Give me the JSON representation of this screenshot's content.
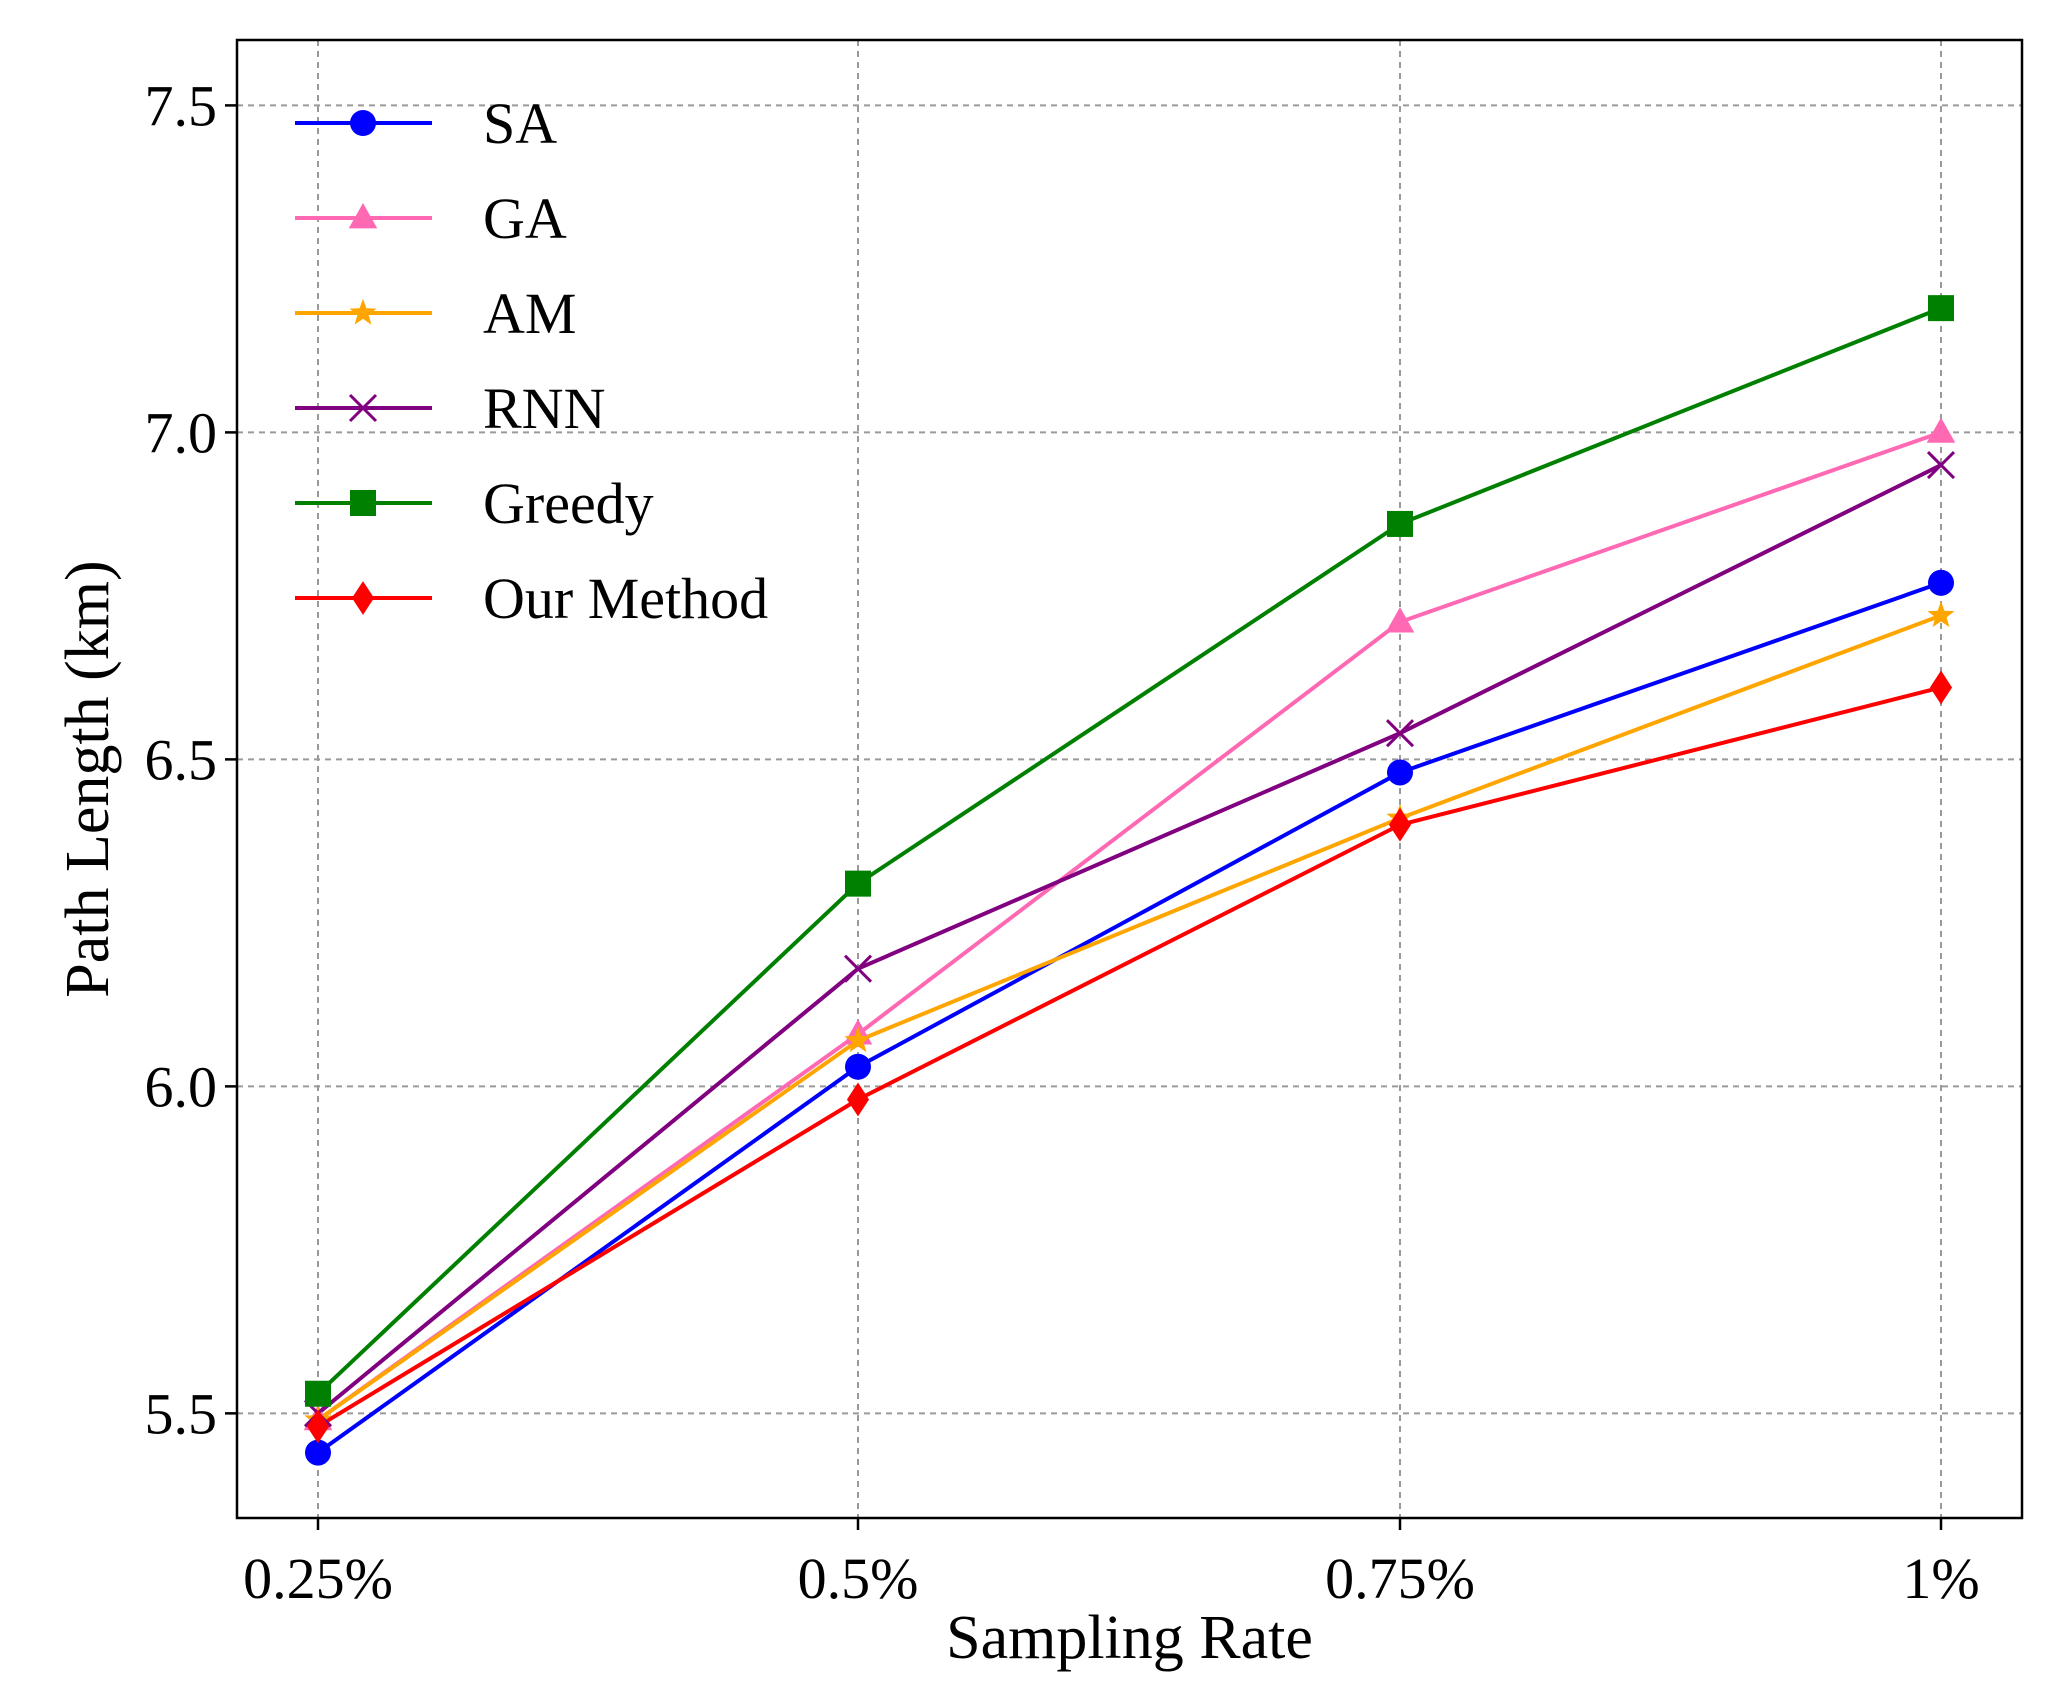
{
  "chart_data": {
    "type": "line",
    "title": "",
    "xlabel": "Sampling Rate",
    "ylabel": "Path Length (km)",
    "categories": [
      "0.25%",
      "0.5%",
      "0.75%",
      "1%"
    ],
    "ylim": [
      5.34,
      7.6
    ],
    "yticks": [
      5.5,
      6.0,
      6.5,
      7.0,
      7.5
    ],
    "ytick_labels": [
      "5.5",
      "6.0",
      "6.5",
      "7.0",
      "7.5"
    ],
    "grid": true,
    "legend_position": "top-left",
    "series": [
      {
        "name": "SA",
        "color": "#0000ff",
        "marker": "circle",
        "values": [
          5.44,
          6.03,
          6.48,
          6.77
        ]
      },
      {
        "name": "GA",
        "color": "#ff69b4",
        "marker": "triangle",
        "values": [
          5.49,
          6.08,
          6.71,
          7.0
        ]
      },
      {
        "name": "AM",
        "color": "#ffa500",
        "marker": "star",
        "values": [
          5.49,
          6.07,
          6.41,
          6.72
        ]
      },
      {
        "name": "RNN",
        "color": "#800080",
        "marker": "x",
        "values": [
          5.5,
          6.18,
          6.54,
          6.95
        ]
      },
      {
        "name": "Greedy",
        "color": "#008000",
        "marker": "square",
        "values": [
          5.53,
          6.31,
          6.86,
          7.19
        ]
      },
      {
        "name": "Our Method",
        "color": "#ff0000",
        "marker": "diamond",
        "values": [
          5.48,
          5.98,
          6.4,
          6.61
        ]
      }
    ]
  }
}
